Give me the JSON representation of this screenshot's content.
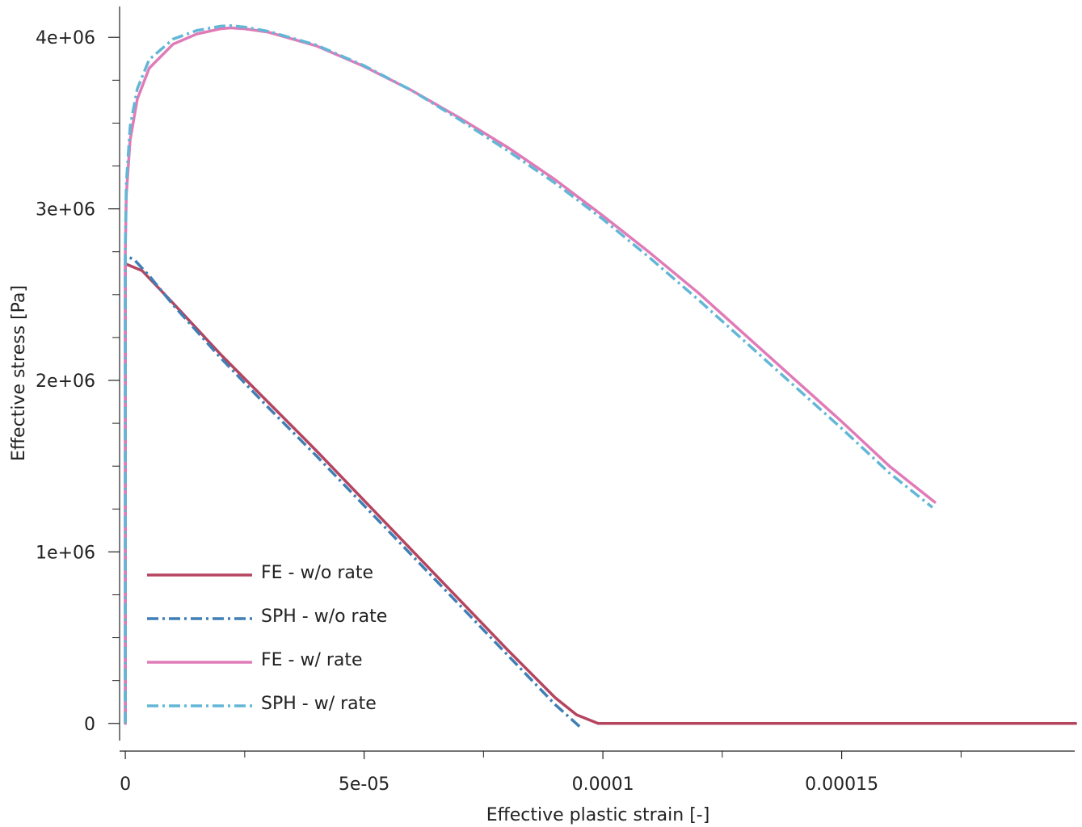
{
  "chart_data": {
    "type": "line",
    "xlabel": "Effective plastic strain [-]",
    "ylabel": "Effective stress [Pa]",
    "xlim": [
      -1.2e-06,
      0.0001988
    ],
    "ylim": [
      -100000,
      4180000
    ],
    "x_ticks": [
      0,
      5e-05,
      0.0001,
      0.00015
    ],
    "x_tick_labels": [
      "0",
      "5e-05",
      "0.0001",
      "0.00015"
    ],
    "x_minor_ticks": [
      2.5e-05,
      7.5e-05,
      0.000125,
      0.000175
    ],
    "y_ticks": [
      0,
      1000000,
      2000000,
      3000000,
      4000000
    ],
    "y_tick_labels": [
      "0",
      "1e+06",
      "2e+06",
      "3e+06",
      "4e+06"
    ],
    "y_minor_ticks": [
      250000,
      500000,
      750000,
      1250000,
      1500000,
      1750000,
      2250000,
      2500000,
      2750000,
      3250000,
      3500000,
      3750000
    ],
    "grid": false,
    "legend_position": "bottom-left",
    "series": [
      {
        "name": "FE - w/o rate",
        "color": "#b5445f",
        "dash": "solid",
        "x": [
          0,
          0,
          0,
          3.5e-06,
          1e-05,
          2e-05,
          3e-05,
          4e-05,
          5e-05,
          6e-05,
          7e-05,
          8e-05,
          9e-05,
          9.45e-05,
          9.9e-05,
          0.00012,
          0.00015,
          0.000199
        ],
        "y": [
          0,
          1500000,
          2680000,
          2640000,
          2450000,
          2150000,
          1870000,
          1590000,
          1300000,
          1010000,
          720000,
          430000,
          150000,
          50000,
          0,
          0,
          0,
          0
        ]
      },
      {
        "name": "SPH - w/o rate",
        "color": "#3f7fb5",
        "dash": "dashdot",
        "x": [
          0,
          0,
          0,
          2e-06,
          5e-06,
          1e-05,
          2e-05,
          3e-05,
          4e-05,
          5e-05,
          6e-05,
          7e-05,
          8e-05,
          9e-05,
          9.52e-05
        ],
        "y": [
          0,
          1500000,
          2730000,
          2700000,
          2610000,
          2440000,
          2130000,
          1840000,
          1560000,
          1270000,
          980000,
          690000,
          400000,
          110000,
          -20000
        ]
      },
      {
        "name": "FE - w/ rate",
        "color": "#e07bb8",
        "dash": "solid",
        "x": [
          0,
          0,
          0,
          2e-07,
          1e-06,
          2.5e-06,
          5e-06,
          1e-05,
          1.5e-05,
          2e-05,
          2.2e-05,
          2.5e-05,
          3e-05,
          4e-05,
          5e-05,
          6e-05,
          7e-05,
          8e-05,
          9e-05,
          0.0001,
          0.00011,
          0.00012,
          0.00013,
          0.00014,
          0.00015,
          0.00016,
          0.0001695
        ],
        "y": [
          0,
          1500000,
          2750000,
          3080000,
          3400000,
          3640000,
          3820000,
          3960000,
          4020000,
          4050000,
          4055000,
          4050000,
          4030000,
          3950000,
          3830000,
          3690000,
          3530000,
          3360000,
          3170000,
          2960000,
          2740000,
          2510000,
          2260000,
          2010000,
          1760000,
          1500000,
          1290000
        ]
      },
      {
        "name": "SPH - w/ rate",
        "color": "#62b7d6",
        "dash": "dashdot",
        "x": [
          0,
          0,
          0,
          2e-07,
          1e-06,
          2.5e-06,
          5e-06,
          1e-05,
          1.5e-05,
          2e-05,
          2.2e-05,
          2.5e-05,
          3e-05,
          4e-05,
          5e-05,
          6e-05,
          7e-05,
          8e-05,
          9e-05,
          0.0001,
          0.00011,
          0.00012,
          0.00013,
          0.00014,
          0.00015,
          0.00016,
          0.000169
        ],
        "y": [
          0,
          1500000,
          2800000,
          3150000,
          3480000,
          3700000,
          3870000,
          3990000,
          4040000,
          4065000,
          4068000,
          4060000,
          4035000,
          3955000,
          3835000,
          3690000,
          3520000,
          3340000,
          3150000,
          2940000,
          2710000,
          2470000,
          2220000,
          1970000,
          1720000,
          1460000,
          1260000
        ]
      }
    ]
  }
}
